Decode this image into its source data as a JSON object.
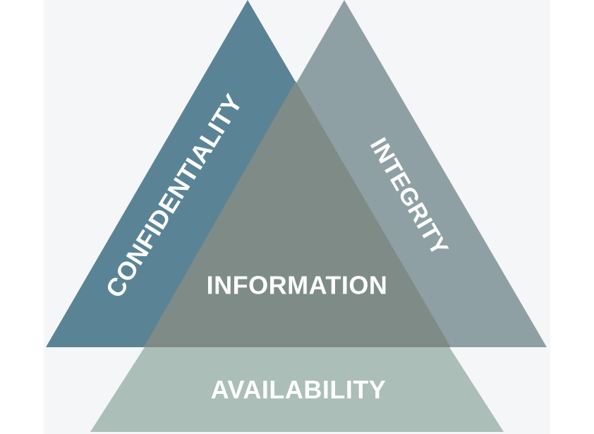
{
  "diagram": {
    "center_label": "INFORMATION",
    "left_label": "CONFIDENTIALITY",
    "right_label": "INTEGRITY",
    "bottom_label": "AVAILABILITY",
    "colors": {
      "confidentiality": "#5a8496",
      "integrity": "#8fa0a4",
      "availability": "#abbeb8",
      "information": "#7f8b86"
    }
  }
}
